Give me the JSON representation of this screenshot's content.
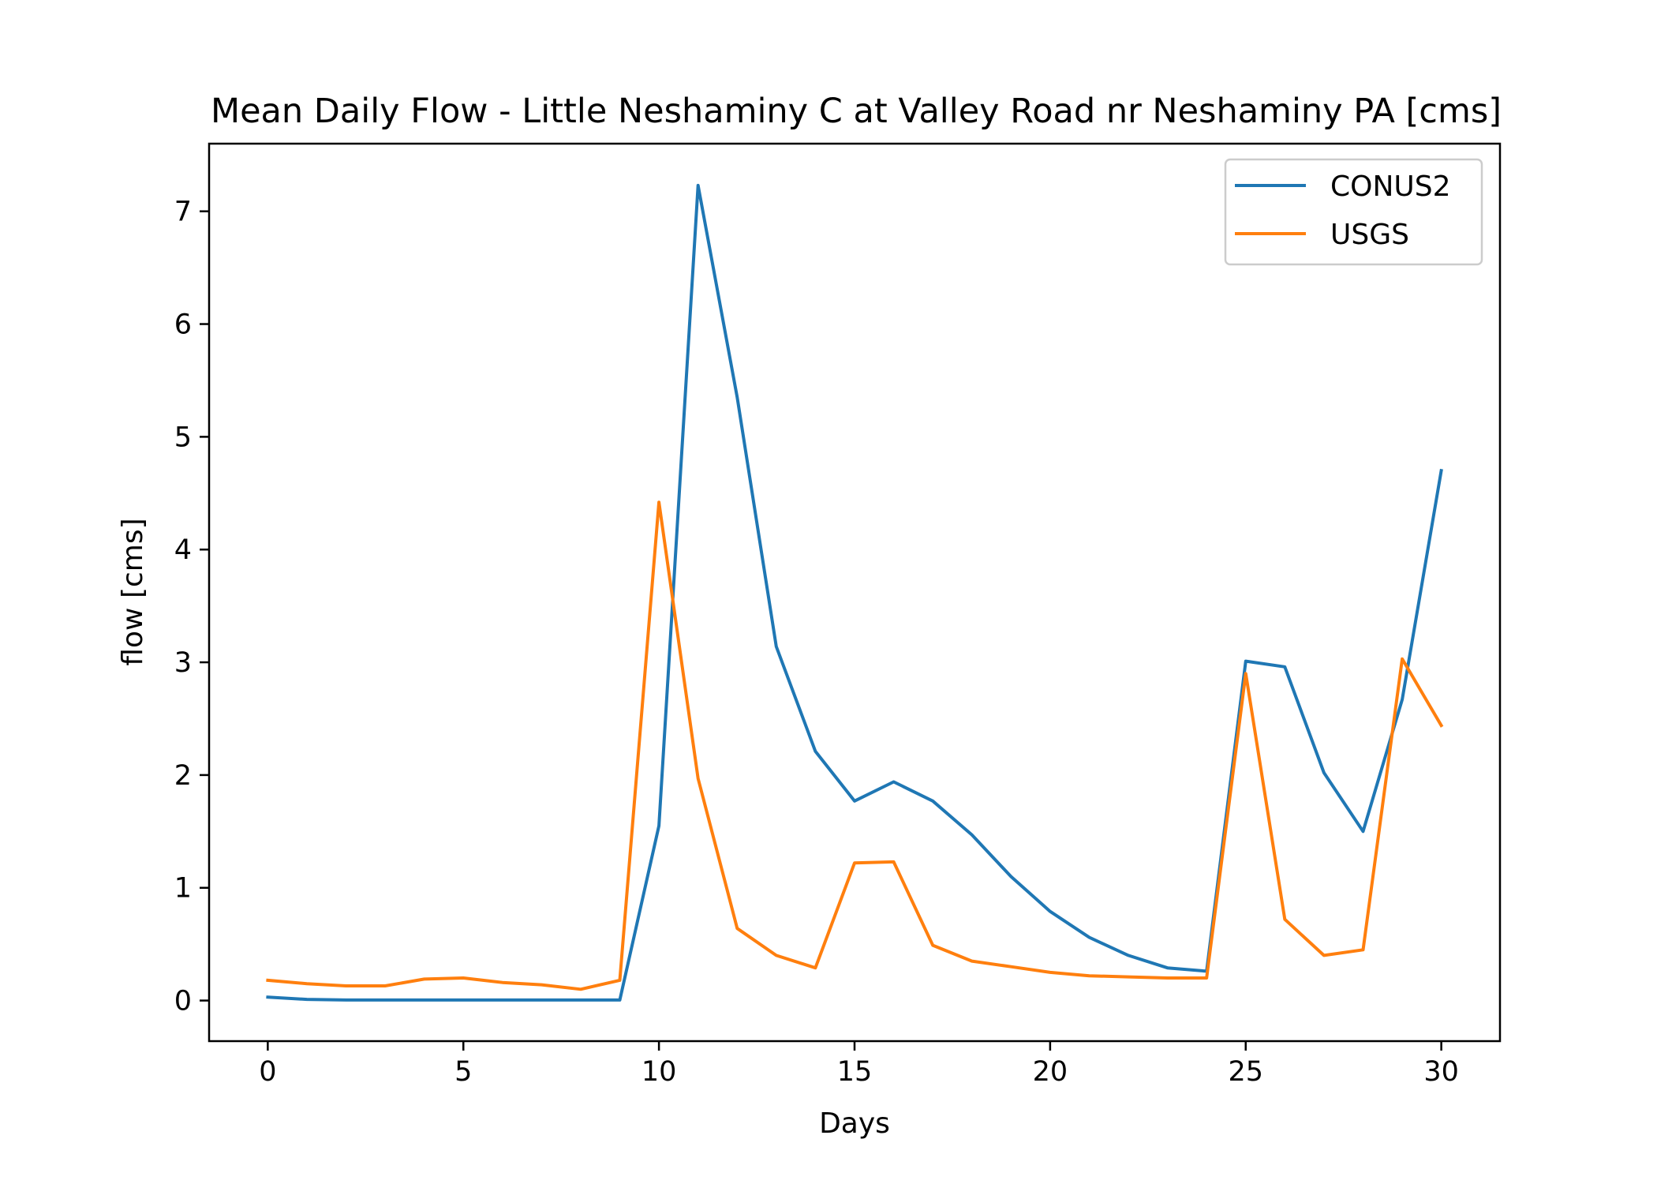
{
  "chart_data": {
    "type": "line",
    "title": "Mean Daily Flow - Little Neshaminy C at Valley Road nr Neshaminy PA [cms]",
    "xlabel": "Days",
    "ylabel": "flow [cms]",
    "xlim": [
      -1.5,
      31.5
    ],
    "ylim": [
      -0.36,
      7.6
    ],
    "xticks": [
      0,
      5,
      10,
      15,
      20,
      25,
      30
    ],
    "yticks": [
      0,
      1,
      2,
      3,
      4,
      5,
      6,
      7
    ],
    "grid": false,
    "legend_position": "top-right",
    "x": [
      0,
      1,
      2,
      3,
      4,
      5,
      6,
      7,
      8,
      9,
      10,
      11,
      12,
      13,
      14,
      15,
      16,
      17,
      18,
      19,
      20,
      21,
      22,
      23,
      24,
      25,
      26,
      27,
      28,
      29,
      30
    ],
    "series": [
      {
        "name": "CONUS2",
        "color": "#1f77b4",
        "values": [
          0.03,
          0.01,
          0.005,
          0.005,
          0.005,
          0.005,
          0.005,
          0.005,
          0.005,
          0.005,
          1.55,
          7.23,
          5.35,
          3.14,
          2.21,
          1.77,
          1.94,
          1.77,
          1.47,
          1.1,
          0.79,
          0.56,
          0.4,
          0.29,
          0.26,
          3.01,
          2.96,
          2.02,
          1.5,
          2.67,
          4.7
        ]
      },
      {
        "name": "USGS",
        "color": "#ff7f0e",
        "values": [
          0.18,
          0.15,
          0.13,
          0.13,
          0.19,
          0.2,
          0.16,
          0.14,
          0.1,
          0.18,
          4.42,
          1.97,
          0.64,
          0.4,
          0.29,
          1.22,
          1.23,
          0.49,
          0.35,
          0.3,
          0.25,
          0.22,
          0.21,
          0.2,
          0.2,
          2.9,
          0.72,
          0.4,
          0.45,
          3.03,
          2.44
        ]
      }
    ]
  }
}
